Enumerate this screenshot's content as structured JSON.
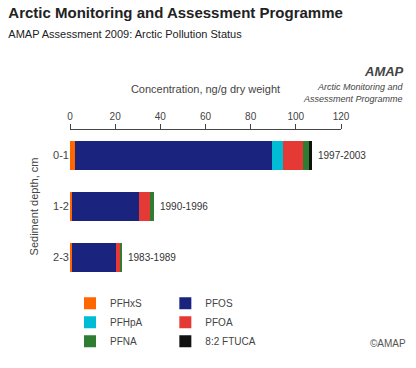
{
  "chart_data": {
    "type": "bar",
    "orientation": "horizontal",
    "stacked": true,
    "title": "Arctic Monitoring and Assessment Programme",
    "subtitle": "AMAP Assessment 2009: Arctic Pollution Status",
    "x_label": "Concentration, ng/g dry weight",
    "y_label": "Sediment depth, cm",
    "categories": [
      "0-1",
      "1-2",
      "2-3"
    ],
    "series": [
      {
        "name": "PFHxS",
        "color": "#FF6600",
        "values": [
          2.0,
          1.0,
          1.0
        ]
      },
      {
        "name": "PFOS",
        "color": "#1A237E",
        "values": [
          87.5,
          29.5,
          19.5
        ]
      },
      {
        "name": "PFHpA",
        "color": "#00BCD4",
        "values": [
          5.0,
          0.0,
          0.0
        ]
      },
      {
        "name": "PFOA",
        "color": "#E53935",
        "values": [
          8.5,
          5.0,
          1.5
        ]
      },
      {
        "name": "PFNA",
        "color": "#2E7D32",
        "values": [
          3.0,
          1.5,
          1.0
        ]
      },
      {
        "name": "8:2 FTUCA",
        "color": "#111111",
        "values": [
          1.0,
          0.0,
          0.0
        ]
      }
    ],
    "annotations": [
      {
        "text": "1997-2003",
        "category": "0-1"
      },
      {
        "text": "1990-1996",
        "category": "1-2"
      },
      {
        "text": "1983-1989",
        "category": "2-3"
      },
      {
        "text": "AMAP"
      },
      {
        "text": "Arctic Monitoring and\nAssessment Programme"
      },
      {
        "text": "©AMAP"
      }
    ],
    "xlim": [
      0,
      120
    ],
    "xticks": [
      0,
      20,
      40,
      60,
      80,
      100,
      120
    ],
    "grid": false,
    "legend": "bottom"
  }
}
